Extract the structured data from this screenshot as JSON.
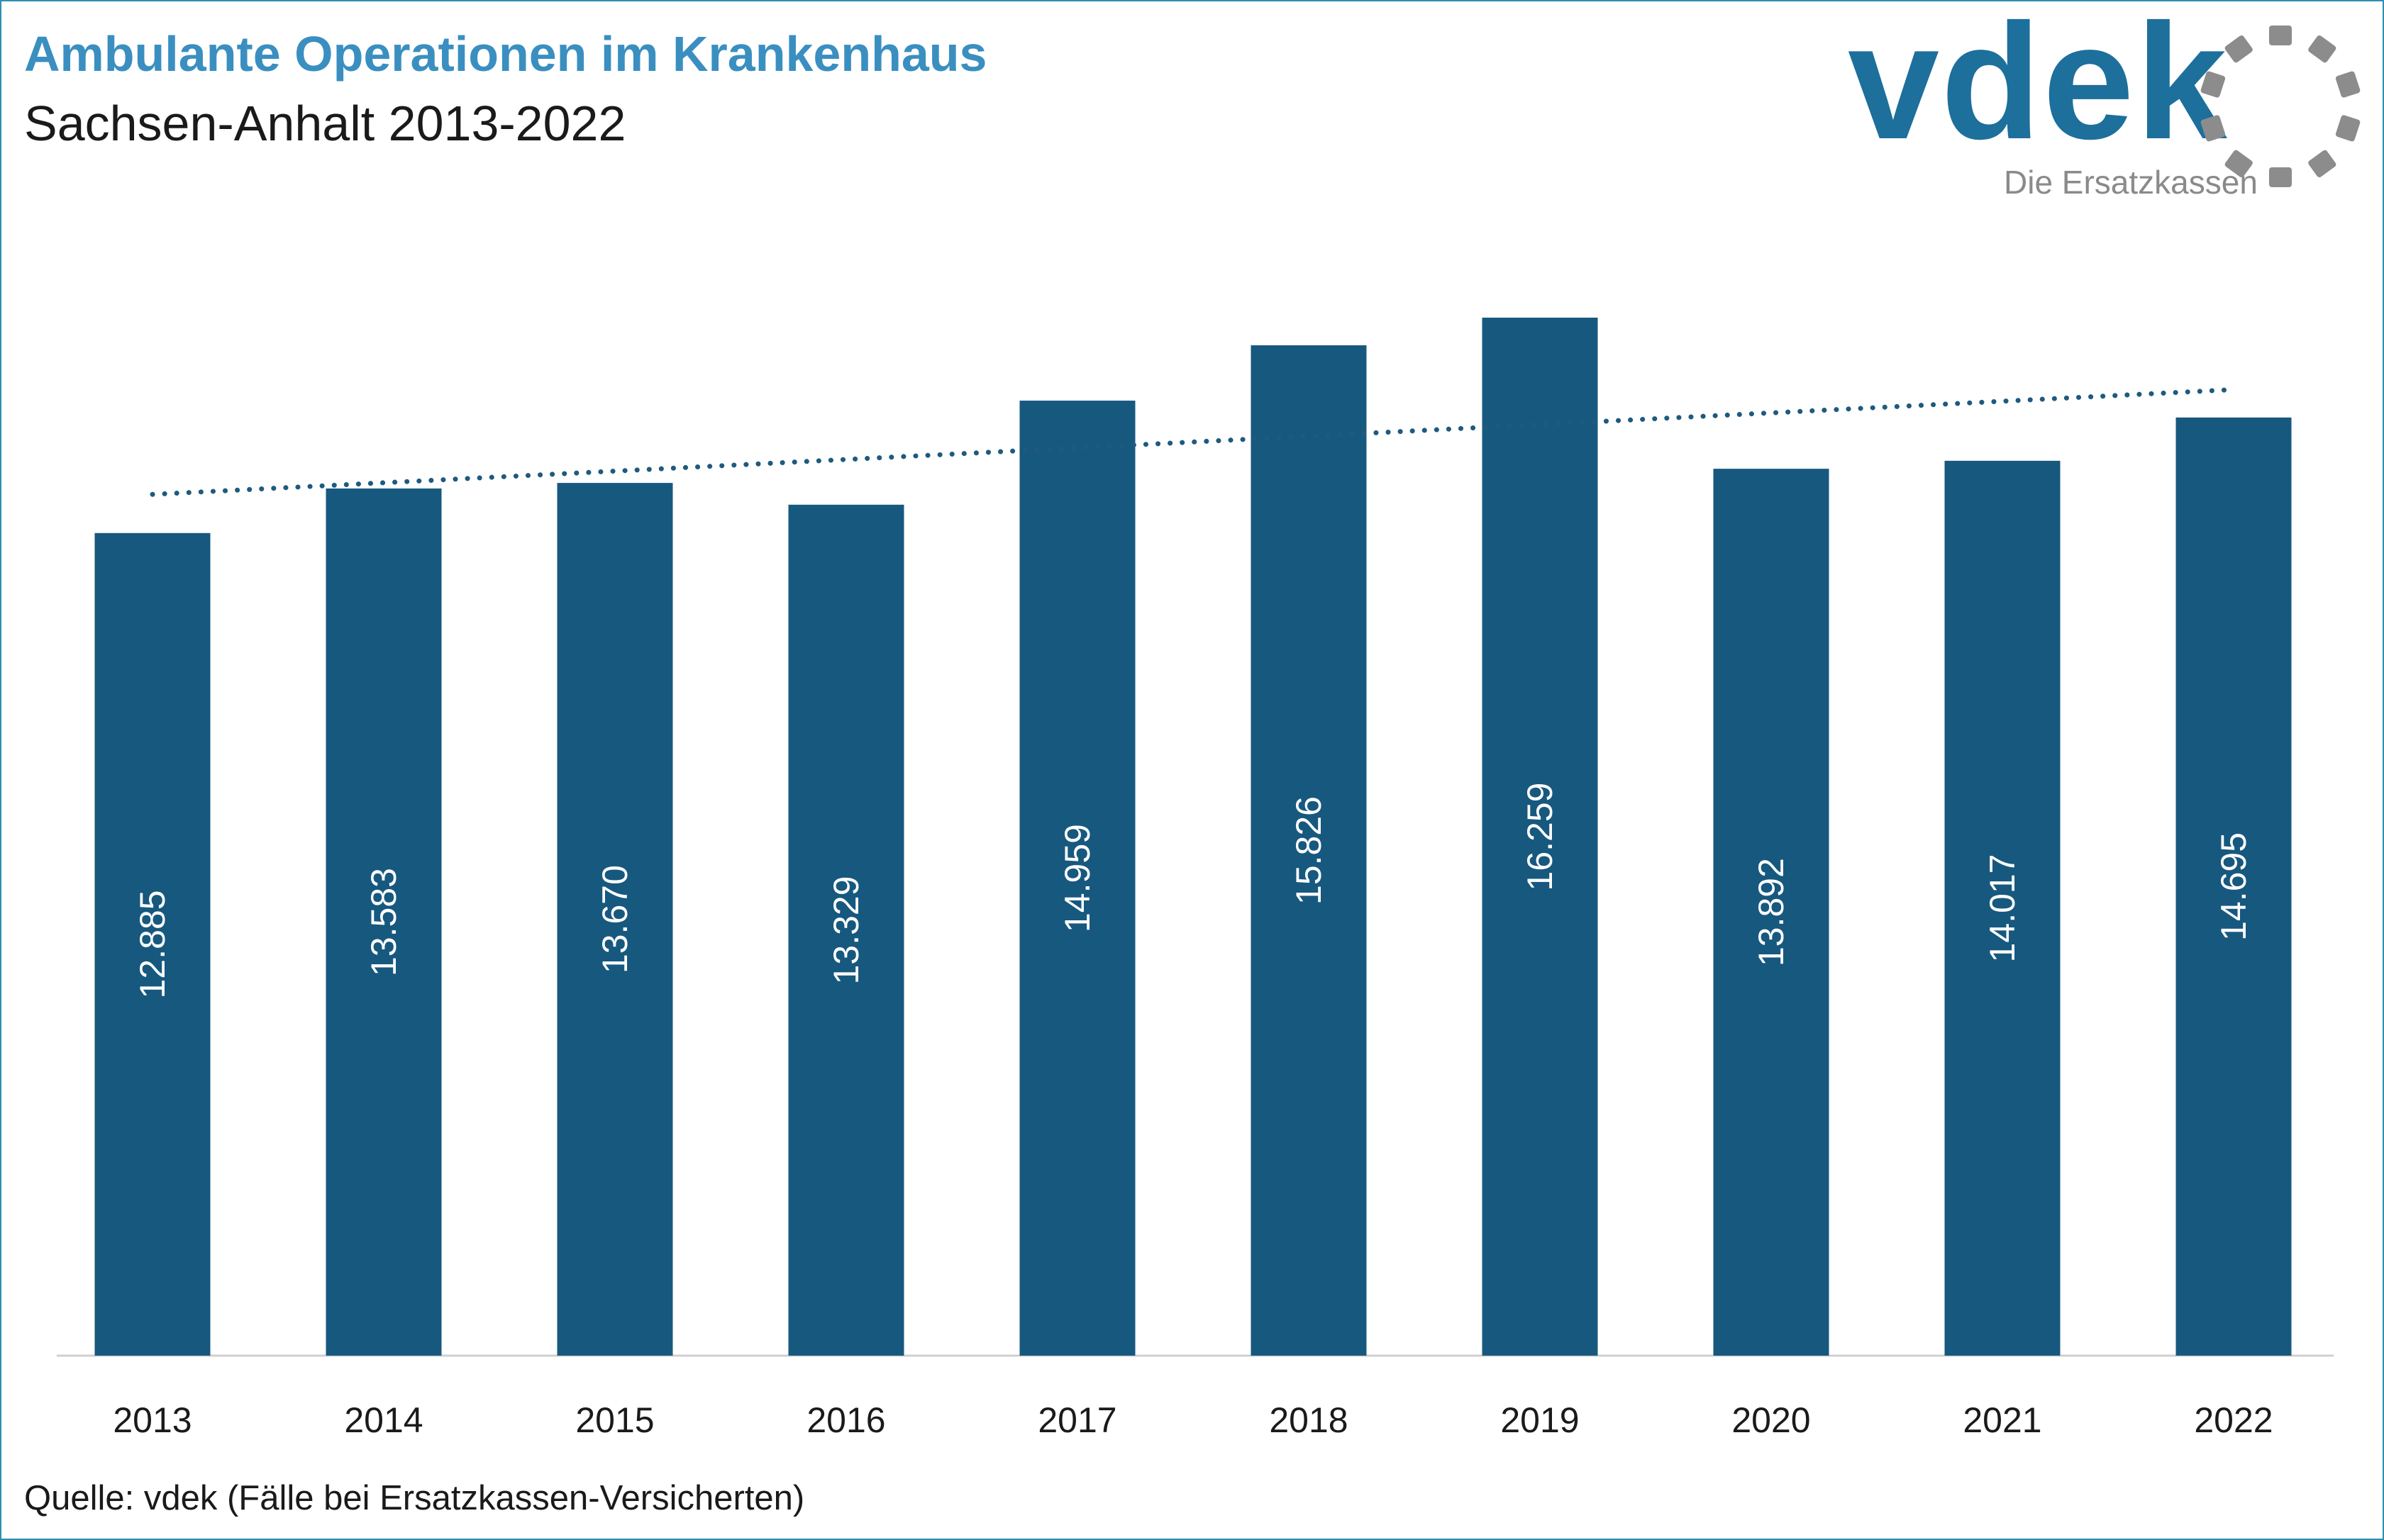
{
  "header": {
    "title": "Ambulante Operationen im Krankenhaus",
    "subtitle": "Sachsen-Anhalt 2013-2022"
  },
  "logo": {
    "wordmark": "vdek",
    "tagline": "Die Ersatzkassen",
    "icon": "vdek-ring-icon"
  },
  "footer": {
    "source": "Quelle: vdek (Fälle bei Ersatzkassen-Versicherten)"
  },
  "colors": {
    "bar": "#17587f",
    "title": "#3a8fc0",
    "trendline": "#1f5a7e",
    "logo_text": "#1d6f9c",
    "logo_ring": "#8c8c8c",
    "frame": "#2f8fb4"
  },
  "chart_data": {
    "type": "bar",
    "title": "Ambulante Operationen im Krankenhaus",
    "subtitle": "Sachsen-Anhalt 2013-2022",
    "categories": [
      "2013",
      "2014",
      "2015",
      "2016",
      "2017",
      "2018",
      "2019",
      "2020",
      "2021",
      "2022"
    ],
    "values": [
      12885,
      13583,
      13670,
      13329,
      14959,
      15826,
      16259,
      13892,
      14017,
      14695
    ],
    "value_labels": [
      "12.885",
      "13.583",
      "13.670",
      "13.329",
      "14.959",
      "15.826",
      "16.259",
      "13.892",
      "14.017",
      "14.695"
    ],
    "trendline": "linear, dotted",
    "xlabel": "",
    "ylabel": "",
    "ylim": [
      0,
      16259
    ],
    "grid": false,
    "legend": "none",
    "value_label_orientation": "vertical"
  }
}
